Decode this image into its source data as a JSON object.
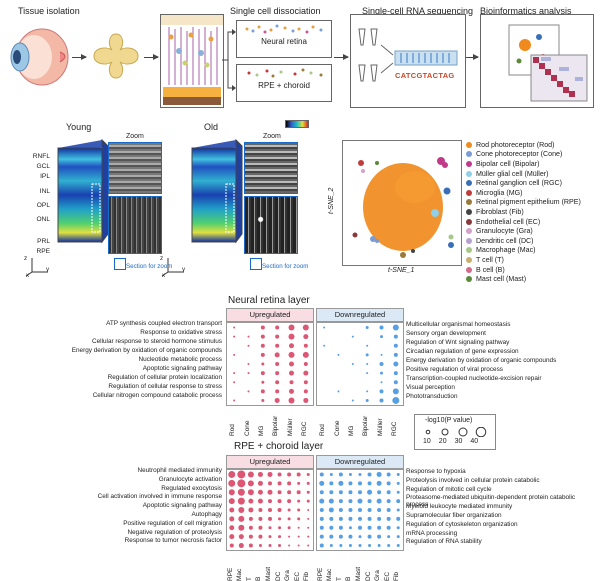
{
  "workflow": {
    "steps": [
      "Tissue isolation",
      "Single cell dissociation",
      "Single-cell RNA sequencing",
      "Bioinformatics analysis"
    ],
    "tissue_labels": [
      "Neural retina",
      "RPE + choroid"
    ],
    "sequence_text": "CATCGTACTAG"
  },
  "microscopy": {
    "young_label": "Young",
    "old_label": "Old",
    "zoom_label": "Zoom",
    "section_label": "Section for zoom",
    "layers": [
      "RNFL",
      "GCL",
      "IPL",
      "INL",
      "OPL",
      "ONL",
      "PRL",
      "RPE"
    ],
    "axis": {
      "x": "x",
      "y": "y",
      "z": "z"
    }
  },
  "tsne": {
    "xlabel": "t-SNE_1",
    "ylabel": "t-SNE_2",
    "legend": [
      {
        "label": "Rod photoreceptor (Rod)",
        "color": "#f08a1c"
      },
      {
        "label": "Cone photoreceptor (Cone)",
        "color": "#7a9bd4"
      },
      {
        "label": "Bipolar cell (Bipolar)",
        "color": "#c13a8a"
      },
      {
        "label": "Müller glial cell (Müller)",
        "color": "#8fd0e8"
      },
      {
        "label": "Retinal ganglion cell (RGC)",
        "color": "#3a6fb8"
      },
      {
        "label": "Microglia (MG)",
        "color": "#c23b3b"
      },
      {
        "label": "Retinal pigment epithelium (RPE)",
        "color": "#9a7a3a"
      },
      {
        "label": "Fibroblast (Fib)",
        "color": "#444444"
      },
      {
        "label": "Endothelial cell (EC)",
        "color": "#8a3a3a"
      },
      {
        "label": "Granulocyte (Gra)",
        "color": "#d4a2c8"
      },
      {
        "label": "Dendritic cell (DC)",
        "color": "#b8a0d0"
      },
      {
        "label": "Macrophage (Mac)",
        "color": "#a8c88a"
      },
      {
        "label": "T cell (T)",
        "color": "#c8b070"
      },
      {
        "label": "B cell (B)",
        "color": "#d46a8a"
      },
      {
        "label": "Mast cell (Mast)",
        "color": "#5a8a3a"
      }
    ]
  },
  "neural": {
    "title": "Neural retina layer",
    "up_label": "Upregulated",
    "down_label": "Downregulated",
    "cols": [
      "Rod",
      "Cone",
      "MG",
      "Bipolar",
      "Müller",
      "RGC"
    ],
    "up_terms": [
      "ATP synthesis coupled electron transport",
      "Response to oxidative stress",
      "Cellular response to steroid hormone stimulus",
      "Energy derivation by oxidation of organic compounds",
      "Nucleotide metabolic process",
      "Apoptotic signaling pathway",
      "Regulation of cellular protein localization",
      "Regulation of cellular response to stress",
      "Cellular nitrogen compound catabolic process"
    ],
    "down_terms": [
      "Multicellular organismal homeostasis",
      "Sensory organ development",
      "Regulation of Wnt signaling pathway",
      "Circadian regulation of gene expression",
      "Energy derivation by oxidation of organic compounds",
      "Positive regulation of viral process",
      "Transcription-coupled nucleotide-excision repair",
      "Visual perception",
      "Phototransduction"
    ],
    "up_colors": "#d63a5a",
    "down_colors": "#3a8ee0"
  },
  "size_legend": {
    "title": "-log10(P value)",
    "values": [
      "10",
      "20",
      "30",
      "40"
    ]
  },
  "rpe": {
    "title": "RPE + choroid layer",
    "up_label": "Upregulated",
    "down_label": "Downregulated",
    "cols": [
      "RPE",
      "Mac",
      "T",
      "B",
      "Mast",
      "DC",
      "Gra",
      "EC",
      "Fib"
    ],
    "up_terms": [
      "Neutrophil mediated immunity",
      "Granulocyte activation",
      "Regulated exocytosis",
      "Cell activation involved in immune response",
      "Apoptotic signaling pathway",
      "Autophagy",
      "Positive regulation of cell migration",
      "Negative regulation of proteolysis",
      "Response to tumor necrosis factor"
    ],
    "down_terms": [
      "Response to hypoxia",
      "Proteolysis involved in cellular protein catabolic",
      "Regulation of mitotic cell cycle",
      "Proteasome-mediated ubiquitin-dependent protein catabolic process",
      "Myeloid leukocyte mediated immunity",
      "Supramolecular fiber organization",
      "Regulation of cytoskeleton organization",
      "mRNA processing",
      "Regulation of RNA stability"
    ]
  }
}
